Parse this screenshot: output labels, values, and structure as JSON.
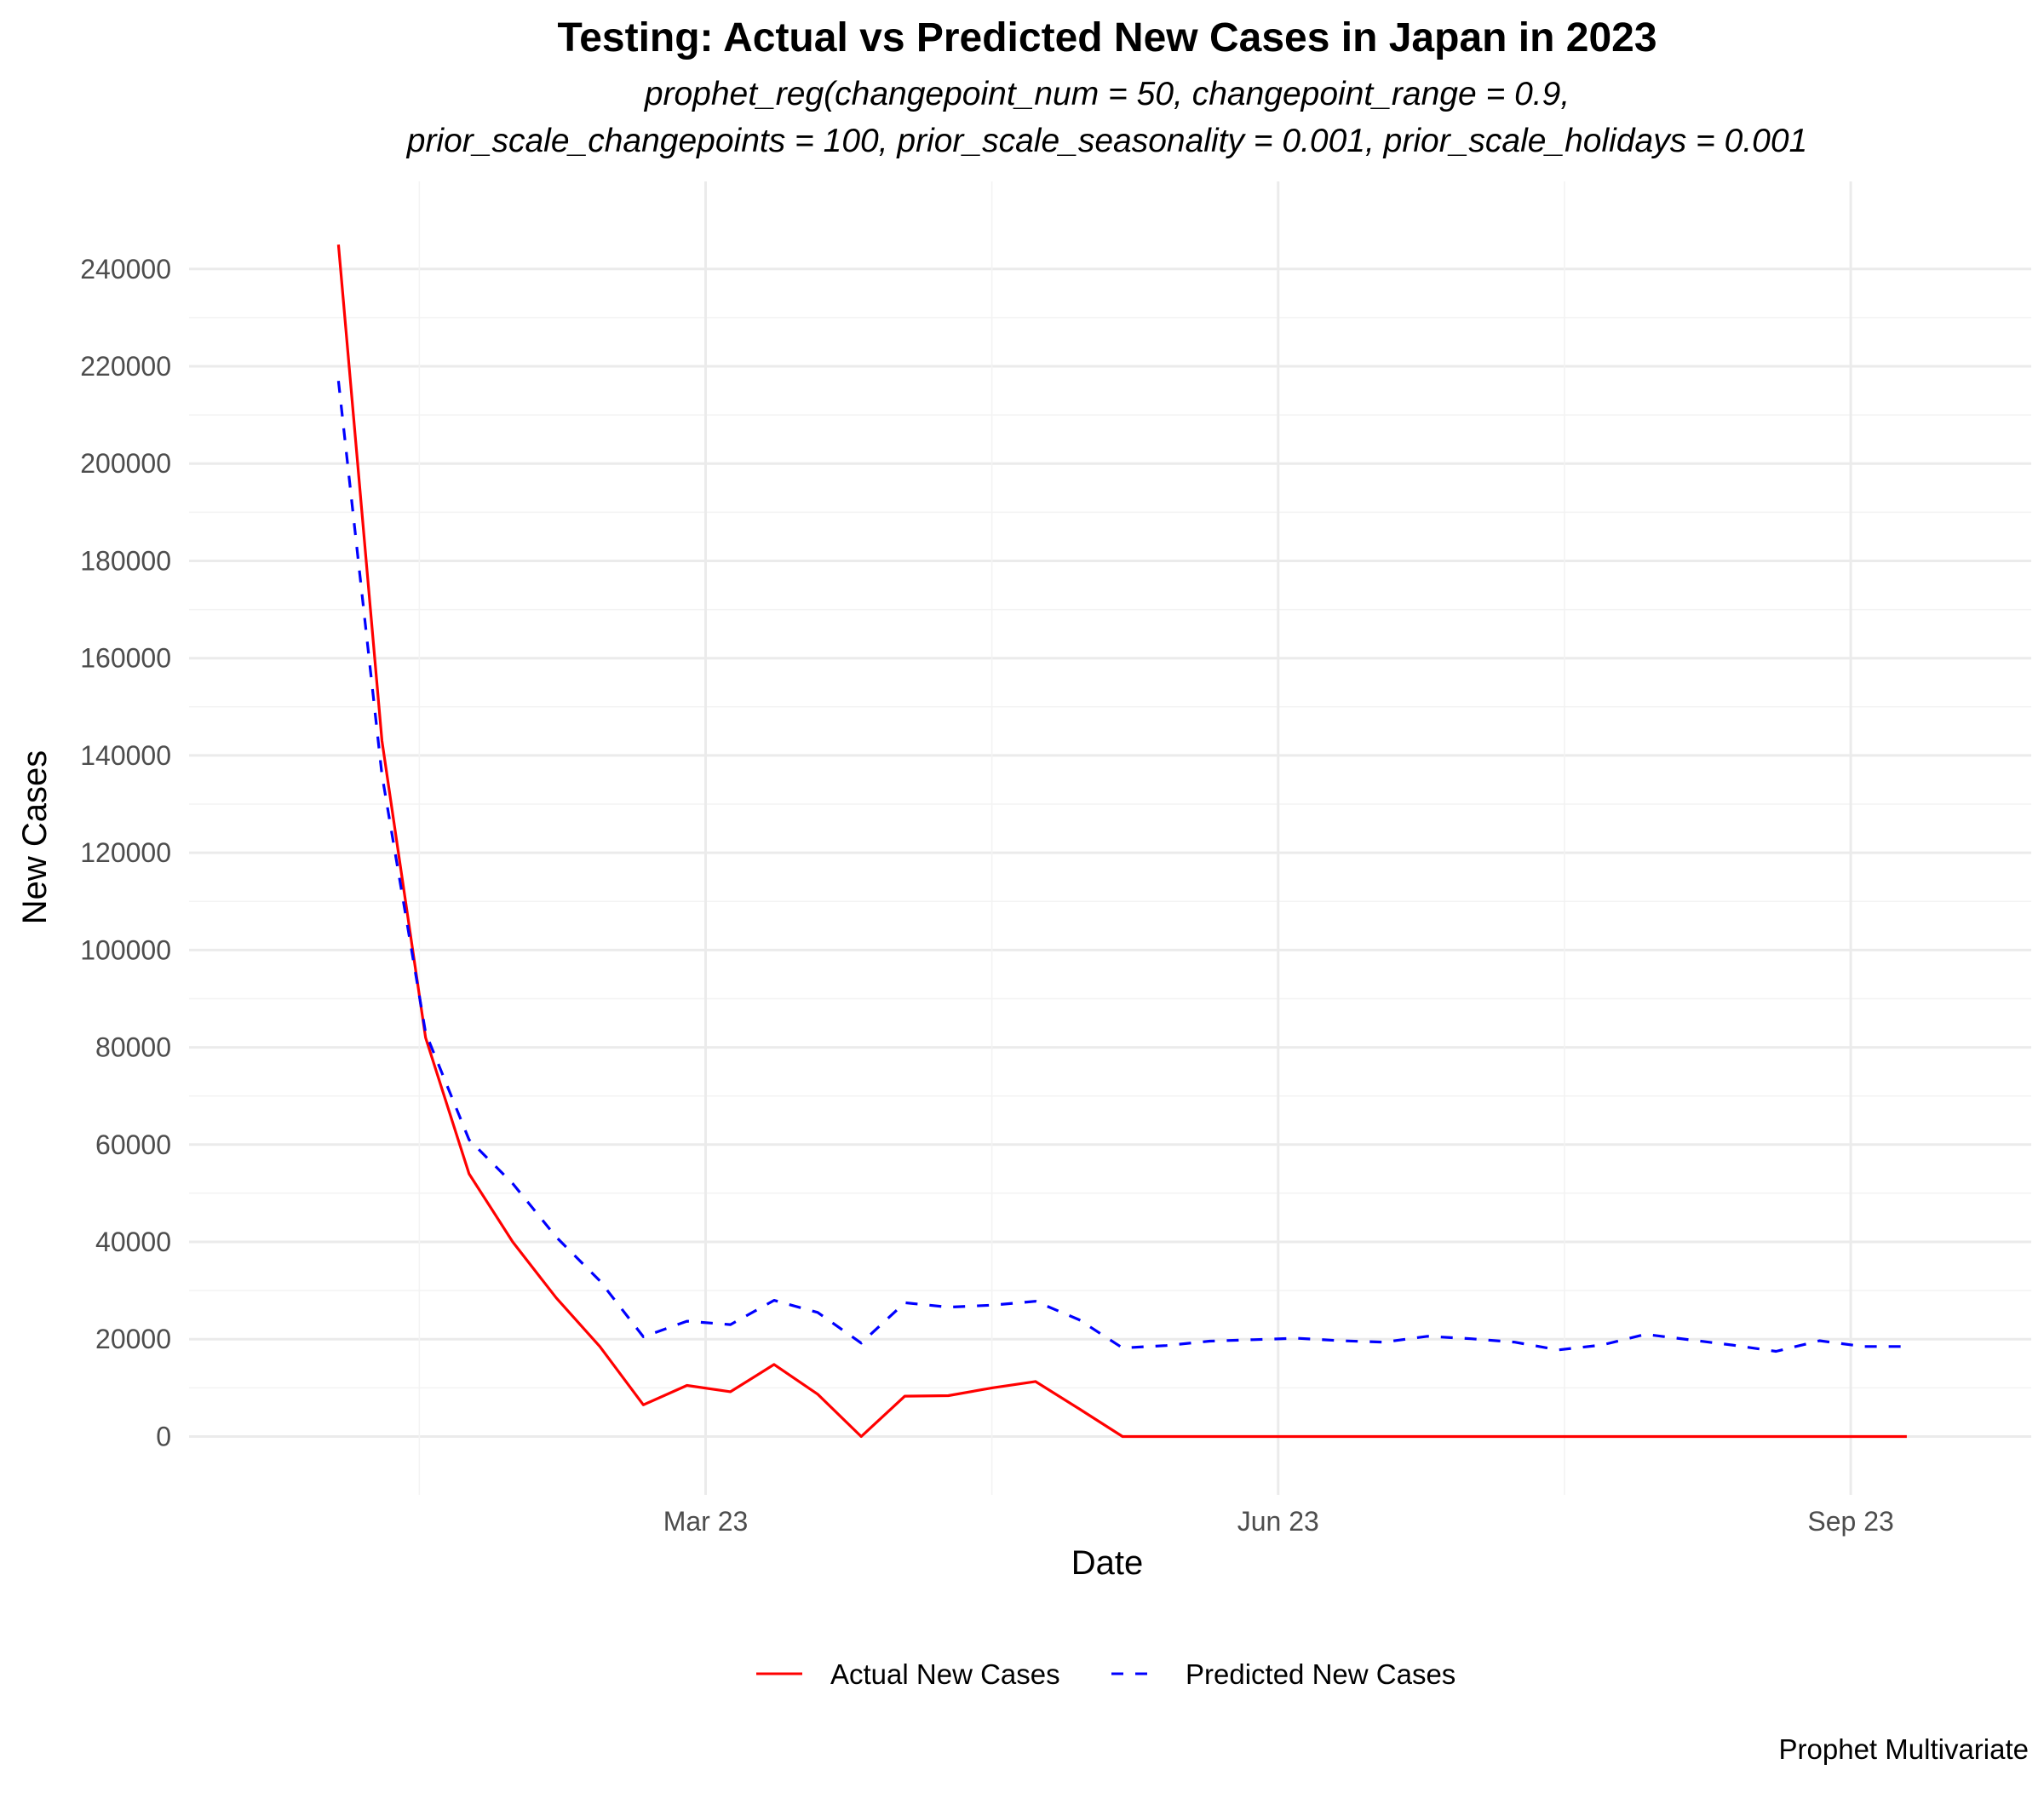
{
  "chart_data": {
    "type": "line",
    "title": "Testing: Actual vs Predicted New Cases in Japan in 2023",
    "subtitle_lines": [
      "prophet_reg(changepoint_num = 50, changepoint_range = 0.9,",
      "prior_scale_changepoints = 100, prior_scale_seasonality = 0.001, prior_scale_holidays = 0.001"
    ],
    "xlabel": "Date",
    "ylabel": "New Cases",
    "caption": "Prophet Multivariate",
    "x_ticks": [
      {
        "date": "2023-03-01",
        "label": "Mar 23"
      },
      {
        "date": "2023-06-01",
        "label": "Jun 23"
      },
      {
        "date": "2023-09-01",
        "label": "Sep 23"
      }
    ],
    "xlim": [
      "2022-12-08",
      "2023-09-30"
    ],
    "y_ticks": [
      0,
      20000,
      40000,
      60000,
      80000,
      100000,
      120000,
      140000,
      160000,
      180000,
      200000,
      220000,
      240000
    ],
    "ylim": [
      -12000,
      258000
    ],
    "grid": true,
    "legend_position": "bottom",
    "x": [
      "2023-01-01",
      "2023-01-08",
      "2023-01-15",
      "2023-01-22",
      "2023-01-29",
      "2023-02-05",
      "2023-02-12",
      "2023-02-19",
      "2023-02-26",
      "2023-03-05",
      "2023-03-12",
      "2023-03-19",
      "2023-03-26",
      "2023-04-02",
      "2023-04-09",
      "2023-04-16",
      "2023-04-23",
      "2023-04-30",
      "2023-05-07",
      "2023-05-14",
      "2023-05-21",
      "2023-05-28",
      "2023-06-04",
      "2023-06-11",
      "2023-06-18",
      "2023-06-25",
      "2023-07-02",
      "2023-07-09",
      "2023-07-16",
      "2023-07-23",
      "2023-07-30",
      "2023-08-06",
      "2023-08-13",
      "2023-08-20",
      "2023-08-27",
      "2023-09-03",
      "2023-09-10"
    ],
    "series": [
      {
        "name": "Actual New Cases",
        "color": "#ff0000",
        "style": "solid",
        "values": [
          245000,
          143000,
          82000,
          54000,
          40000,
          28500,
          18500,
          6500,
          10500,
          9200,
          14800,
          8700,
          0,
          8300,
          8400,
          10000,
          11300,
          5700,
          0,
          0,
          0,
          0,
          0,
          0,
          0,
          0,
          0,
          0,
          0,
          0,
          0,
          0,
          0,
          0,
          0,
          0,
          0
        ]
      },
      {
        "name": "Predicted New Cases",
        "color": "#0000ff",
        "style": "dashed",
        "values": [
          217000,
          136000,
          83000,
          61000,
          52000,
          41000,
          32000,
          20500,
          23700,
          23000,
          28000,
          25500,
          19200,
          27500,
          26600,
          27000,
          27800,
          24000,
          18200,
          18700,
          19600,
          19900,
          20200,
          19700,
          19400,
          20600,
          20100,
          19400,
          17800,
          18800,
          21000,
          19900,
          18800,
          17500,
          19700,
          18500,
          18500
        ]
      }
    ]
  }
}
